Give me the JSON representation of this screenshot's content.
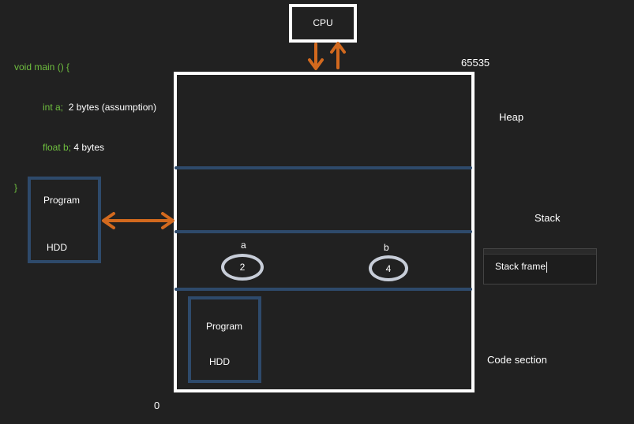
{
  "code": {
    "line1": "void main () {",
    "line2_prefix": "int a;  ",
    "line2_suffix": "2 bytes (assumption)",
    "line3_prefix": "float b; ",
    "line3_suffix": "4 bytes",
    "line4": "}"
  },
  "cpu_label": "CPU",
  "memory": {
    "top_address": "65535",
    "bottom_address": "0",
    "sections": {
      "heap": "Heap",
      "stack": "Stack",
      "code": "Code section"
    }
  },
  "stack_frame_textbox": "Stack frame",
  "variables": [
    {
      "name": "a",
      "value": "2"
    },
    {
      "name": "b",
      "value": "4"
    }
  ],
  "external_program": {
    "title": "Program",
    "subtitle": "HDD"
  },
  "code_program": {
    "title": "Program",
    "subtitle": "HDD"
  },
  "colors": {
    "background": "#212121",
    "box_outline": "#ffffff",
    "divider": "#2e4a6b",
    "program_box": "#2e4a6b",
    "arrow": "#d2691e",
    "code_green": "#6fbf3f"
  }
}
